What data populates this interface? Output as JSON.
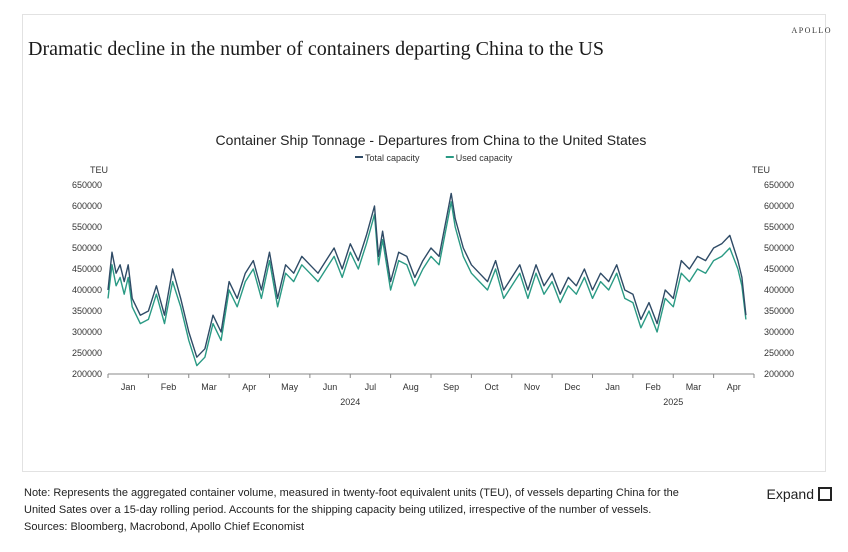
{
  "brand": "APOLLO",
  "headline": "Dramatic decline in the number of containers departing China to the US",
  "note_lines": [
    "Note: Represents the aggregated container volume, measured in twenty-foot equivalent units (TEU), of vessels departing China for the",
    "United Sates over a 15-day rolling period. Accounts for the shipping capacity being utilized, irrespective of the number of vessels.",
    "Sources: Bloomberg, Macrobond, Apollo Chief Economist"
  ],
  "expand_label": "Expand",
  "colors": {
    "total": "#2f4b66",
    "used": "#2a9a84"
  },
  "chart_data": {
    "type": "line",
    "title": "Container Ship Tonnage - Departures from China to the United States",
    "ylabel_left": "TEU",
    "ylabel_right": "TEU",
    "ylim": [
      200000,
      650000
    ],
    "yticks": [
      "200000",
      "250000",
      "300000",
      "350000",
      "400000",
      "450000",
      "500000",
      "550000",
      "600000",
      "650000"
    ],
    "xlim": [
      0,
      16
    ],
    "xticks": [
      {
        "label": "Jan",
        "x": 0.5
      },
      {
        "label": "Feb",
        "x": 1.5
      },
      {
        "label": "Mar",
        "x": 2.5
      },
      {
        "label": "Apr",
        "x": 3.5
      },
      {
        "label": "May",
        "x": 4.5
      },
      {
        "label": "Jun",
        "x": 5.5
      },
      {
        "label": "Jul",
        "x": 6.5
      },
      {
        "label": "Aug",
        "x": 7.5
      },
      {
        "label": "Sep",
        "x": 8.5
      },
      {
        "label": "Oct",
        "x": 9.5
      },
      {
        "label": "Nov",
        "x": 10.5
      },
      {
        "label": "Dec",
        "x": 11.5
      },
      {
        "label": "Jan",
        "x": 12.5
      },
      {
        "label": "Feb",
        "x": 13.5
      },
      {
        "label": "Mar",
        "x": 14.5
      },
      {
        "label": "Apr",
        "x": 15.5
      }
    ],
    "year_labels": [
      {
        "label": "2024",
        "x": 6.0
      },
      {
        "label": "2025",
        "x": 14.0
      }
    ],
    "grid": false,
    "legend": "top-center",
    "series": [
      {
        "name": "Total capacity",
        "x": [
          0,
          0.1,
          0.2,
          0.3,
          0.4,
          0.5,
          0.6,
          0.8,
          1.0,
          1.2,
          1.4,
          1.6,
          1.8,
          2.0,
          2.2,
          2.4,
          2.6,
          2.8,
          3.0,
          3.2,
          3.4,
          3.6,
          3.8,
          4.0,
          4.2,
          4.4,
          4.6,
          4.8,
          5.0,
          5.2,
          5.4,
          5.6,
          5.8,
          6.0,
          6.2,
          6.4,
          6.6,
          6.7,
          6.8,
          7.0,
          7.2,
          7.4,
          7.6,
          7.8,
          8.0,
          8.2,
          8.4,
          8.5,
          8.6,
          8.8,
          9.0,
          9.2,
          9.4,
          9.6,
          9.8,
          10.0,
          10.2,
          10.4,
          10.6,
          10.8,
          11.0,
          11.2,
          11.4,
          11.6,
          11.8,
          12.0,
          12.2,
          12.4,
          12.6,
          12.8,
          13.0,
          13.2,
          13.4,
          13.6,
          13.8,
          14.0,
          14.2,
          14.4,
          14.6,
          14.8,
          15.0,
          15.2,
          15.4,
          15.6,
          15.7,
          15.8
        ],
        "values": [
          400000,
          490000,
          440000,
          460000,
          420000,
          460000,
          380000,
          340000,
          350000,
          410000,
          340000,
          450000,
          380000,
          300000,
          240000,
          260000,
          340000,
          300000,
          420000,
          380000,
          440000,
          470000,
          400000,
          490000,
          380000,
          460000,
          440000,
          480000,
          460000,
          440000,
          470000,
          500000,
          450000,
          510000,
          470000,
          530000,
          600000,
          480000,
          540000,
          420000,
          490000,
          480000,
          430000,
          470000,
          500000,
          480000,
          580000,
          630000,
          570000,
          500000,
          460000,
          440000,
          420000,
          470000,
          400000,
          430000,
          460000,
          400000,
          460000,
          410000,
          440000,
          390000,
          430000,
          410000,
          450000,
          400000,
          440000,
          420000,
          460000,
          400000,
          390000,
          330000,
          370000,
          320000,
          400000,
          380000,
          470000,
          450000,
          480000,
          470000,
          500000,
          510000,
          530000,
          470000,
          430000,
          340000
        ]
      },
      {
        "name": "Used capacity",
        "x": [
          0,
          0.1,
          0.2,
          0.3,
          0.4,
          0.5,
          0.6,
          0.8,
          1.0,
          1.2,
          1.4,
          1.6,
          1.8,
          2.0,
          2.2,
          2.4,
          2.6,
          2.8,
          3.0,
          3.2,
          3.4,
          3.6,
          3.8,
          4.0,
          4.2,
          4.4,
          4.6,
          4.8,
          5.0,
          5.2,
          5.4,
          5.6,
          5.8,
          6.0,
          6.2,
          6.4,
          6.6,
          6.7,
          6.8,
          7.0,
          7.2,
          7.4,
          7.6,
          7.8,
          8.0,
          8.2,
          8.4,
          8.5,
          8.6,
          8.8,
          9.0,
          9.2,
          9.4,
          9.6,
          9.8,
          10.0,
          10.2,
          10.4,
          10.6,
          10.8,
          11.0,
          11.2,
          11.4,
          11.6,
          11.8,
          12.0,
          12.2,
          12.4,
          12.6,
          12.8,
          13.0,
          13.2,
          13.4,
          13.6,
          13.8,
          14.0,
          14.2,
          14.4,
          14.6,
          14.8,
          15.0,
          15.2,
          15.4,
          15.6,
          15.7,
          15.8
        ],
        "values": [
          380000,
          460000,
          410000,
          430000,
          390000,
          430000,
          360000,
          320000,
          330000,
          390000,
          320000,
          420000,
          360000,
          280000,
          220000,
          240000,
          320000,
          280000,
          400000,
          360000,
          420000,
          450000,
          380000,
          470000,
          360000,
          440000,
          420000,
          460000,
          440000,
          420000,
          450000,
          480000,
          430000,
          490000,
          450000,
          510000,
          580000,
          460000,
          520000,
          400000,
          470000,
          460000,
          410000,
          450000,
          480000,
          460000,
          560000,
          610000,
          550000,
          480000,
          440000,
          420000,
          400000,
          450000,
          380000,
          410000,
          440000,
          380000,
          440000,
          390000,
          420000,
          370000,
          410000,
          390000,
          430000,
          380000,
          420000,
          400000,
          440000,
          380000,
          370000,
          310000,
          350000,
          300000,
          380000,
          360000,
          440000,
          420000,
          450000,
          440000,
          470000,
          480000,
          500000,
          450000,
          410000,
          330000
        ]
      }
    ]
  }
}
